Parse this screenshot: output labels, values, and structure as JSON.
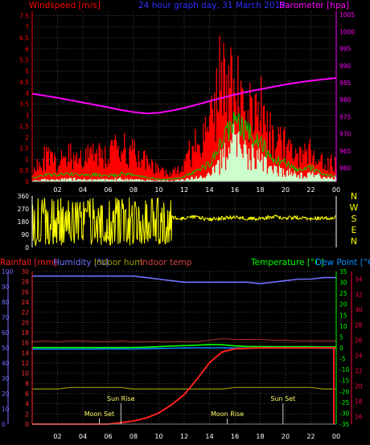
{
  "colors": {
    "background": "#000000",
    "plot_bg": "#000000",
    "grid": "#5a5a5a",
    "wind_gust": "#ff0000",
    "wind_avg": "#00cc00",
    "wind_speed_fill": "#ccffcc",
    "barometer": "#ff00ff",
    "direction": "#ffff00",
    "humidity": "#7070ff",
    "indoor_hum": "#8a8a00",
    "indoor_temp": "#b03030",
    "temperature": "#00ff00",
    "dew_point": "#0080ff",
    "rain": "#ff2020",
    "axis_text_white": "#ffffff"
  },
  "chart_data": [
    {
      "type": "line",
      "title": "24 hour graph day, 31 March 2019",
      "left_label": "Windspeed [m/s]",
      "right_label": "Barometer [hpa]",
      "x_ticks": [
        "02",
        "04",
        "06",
        "08",
        "10",
        "12",
        "14",
        "16",
        "18",
        "20",
        "22",
        "00"
      ],
      "y_left_ticks": [
        "0",
        "0.5",
        "1",
        "1.5",
        "2",
        "2.5",
        "3",
        "3.5",
        "4",
        "4.5",
        "5",
        "5.5",
        "6",
        "6.5",
        "7",
        "7.5"
      ],
      "y_left_range": [
        0,
        7.7
      ],
      "y_right_ticks": [
        "960",
        "965",
        "970",
        "975",
        "980",
        "985",
        "990",
        "995",
        "1000",
        "1005"
      ],
      "y_right_range": [
        956,
        1006
      ],
      "hours": [
        0,
        1,
        2,
        3,
        4,
        5,
        6,
        7,
        8,
        9,
        10,
        11,
        12,
        13,
        14,
        15,
        16,
        17,
        18,
        19,
        20,
        21,
        22,
        23,
        24
      ],
      "barometer_hpa": [
        981.8,
        981.2,
        980.6,
        979.9,
        979.2,
        978.5,
        977.8,
        977.0,
        976.4,
        976.0,
        976.2,
        976.8,
        977.6,
        978.6,
        979.6,
        980.6,
        981.5,
        982.4,
        983.1,
        983.8,
        984.5,
        985.1,
        985.6,
        986.0,
        986.4
      ],
      "wind_gust_ms": [
        0.7,
        1.4,
        1.0,
        1.6,
        1.3,
        1.7,
        1.5,
        2.0,
        1.6,
        1.2,
        0.6,
        0.5,
        1.1,
        2.3,
        3.0,
        6.2,
        5.2,
        3.6,
        4.6,
        2.5,
        2.2,
        1.3,
        1.7,
        1.0,
        1.1
      ],
      "wind_avg_ms": [
        0.15,
        0.3,
        0.3,
        0.35,
        0.3,
        0.3,
        0.25,
        0.35,
        0.3,
        0.2,
        0.1,
        0.1,
        0.2,
        0.5,
        0.8,
        1.8,
        2.8,
        2.2,
        1.8,
        1.0,
        0.9,
        0.5,
        0.6,
        0.3,
        0.3
      ],
      "wind_speed_ms": [
        0.05,
        0.1,
        0.1,
        0.15,
        0.1,
        0.1,
        0.1,
        0.15,
        0.1,
        0.08,
        0.05,
        0.05,
        0.1,
        0.2,
        0.35,
        1.2,
        2.0,
        1.6,
        1.2,
        0.7,
        0.6,
        0.3,
        0.4,
        0.2,
        0.2
      ]
    },
    {
      "type": "scatter",
      "title": "",
      "y_ticks": [
        "0",
        "90",
        "180",
        "270",
        "360"
      ],
      "y_range": [
        0,
        360
      ],
      "compass_labels": [
        "N",
        "W",
        "S",
        "E",
        "N"
      ],
      "wind_dir_deg": [
        310,
        40,
        300,
        60,
        320,
        50,
        280,
        90,
        330,
        40,
        260,
        210,
        200,
        215,
        195,
        205,
        210,
        205,
        200,
        215,
        205,
        210,
        200,
        205,
        210
      ]
    },
    {
      "type": "line",
      "title": "",
      "left_labels": {
        "rain": "Rainfall [mm]",
        "humidity": "Humidity [%]",
        "indoor_hum": "Indoor hum",
        "indoor_temp": "Indoor temp"
      },
      "right_labels": {
        "temperature": "Temperature [°C]",
        "dew_point": "Dew Point [°C]"
      },
      "y_hum_ticks": [
        "0",
        "10",
        "20",
        "30",
        "40",
        "50",
        "60",
        "70",
        "80",
        "90",
        "100"
      ],
      "y_hum_range": [
        0,
        100
      ],
      "y_rain_ticks": [
        "0",
        "2",
        "4",
        "6",
        "8",
        "10",
        "12",
        "14",
        "16",
        "18",
        "20",
        "22",
        "24",
        "26",
        "28",
        "30"
      ],
      "y_rain_range": [
        0,
        30
      ],
      "y_temp_ticks": [
        "-35",
        "-30",
        "-25",
        "-20",
        "-15",
        "-10",
        "-5",
        "0",
        "5",
        "10",
        "15",
        "20",
        "25",
        "30",
        "35"
      ],
      "y_temp_range": [
        -35,
        35
      ],
      "y_indoor_ticks": [
        "16",
        "18",
        "20",
        "22",
        "24",
        "26",
        "28",
        "30",
        "32",
        "34"
      ],
      "y_indoor_range": [
        15,
        35
      ],
      "hours": [
        0,
        1,
        2,
        3,
        4,
        5,
        6,
        7,
        8,
        9,
        10,
        11,
        12,
        13,
        14,
        15,
        16,
        17,
        18,
        19,
        20,
        21,
        22,
        23,
        24
      ],
      "humidity_pct": [
        97,
        97,
        97,
        97,
        97,
        97,
        97,
        97,
        97,
        96,
        95,
        94,
        93,
        93,
        93,
        93,
        93,
        93,
        92,
        93,
        94,
        95,
        95,
        96,
        96
      ],
      "indoor_hum_pct": [
        23,
        23,
        23,
        24,
        24,
        24,
        24,
        24,
        23,
        23,
        23,
        23,
        23,
        23,
        23,
        23,
        24,
        24,
        24,
        24,
        24,
        24,
        24,
        23,
        23
      ],
      "indoor_temp_c": [
        25.8,
        25.9,
        25.8,
        25.9,
        25.9,
        25.8,
        25.8,
        25.9,
        25.8,
        25.8,
        25.8,
        25.8,
        25.8,
        25.8,
        26.0,
        26.2,
        26.1,
        26.1,
        26.1,
        26.0,
        26.0,
        25.9,
        25.9,
        25.9,
        25.9
      ],
      "temperature_c": [
        0.1,
        0.1,
        0.1,
        0.1,
        0.1,
        0.1,
        0.1,
        0.1,
        0.2,
        0.3,
        0.5,
        0.8,
        1.0,
        1.2,
        1.5,
        1.4,
        0.9,
        0.6,
        0.6,
        0.5,
        0.5,
        0.5,
        0.5,
        0.4,
        0.4
      ],
      "dew_point_c": [
        -0.6,
        -0.6,
        -0.6,
        -0.6,
        -0.6,
        -0.6,
        -0.5,
        -0.5,
        -0.5,
        -0.4,
        -0.3,
        -0.2,
        -0.1,
        0.0,
        0.0,
        0.0,
        -0.1,
        -0.1,
        -0.1,
        -0.1,
        -0.1,
        -0.1,
        -0.1,
        -0.2,
        -0.2
      ],
      "rain_mm": [
        0,
        0,
        0,
        0,
        0,
        0,
        0,
        0.3,
        0.6,
        1.2,
        2.2,
        3.8,
        5.8,
        8.8,
        12.1,
        14.2,
        14.8,
        14.9,
        15.0,
        15.0,
        15.0,
        15.0,
        15.0,
        15.0,
        15.0
      ],
      "events": [
        {
          "label": "Moon Set",
          "hour": 5.3
        },
        {
          "label": "Sun Rise",
          "hour": 7.0
        },
        {
          "label": "Moon Rise",
          "hour": 15.4
        },
        {
          "label": "Sun Set",
          "hour": 19.8
        }
      ]
    }
  ]
}
